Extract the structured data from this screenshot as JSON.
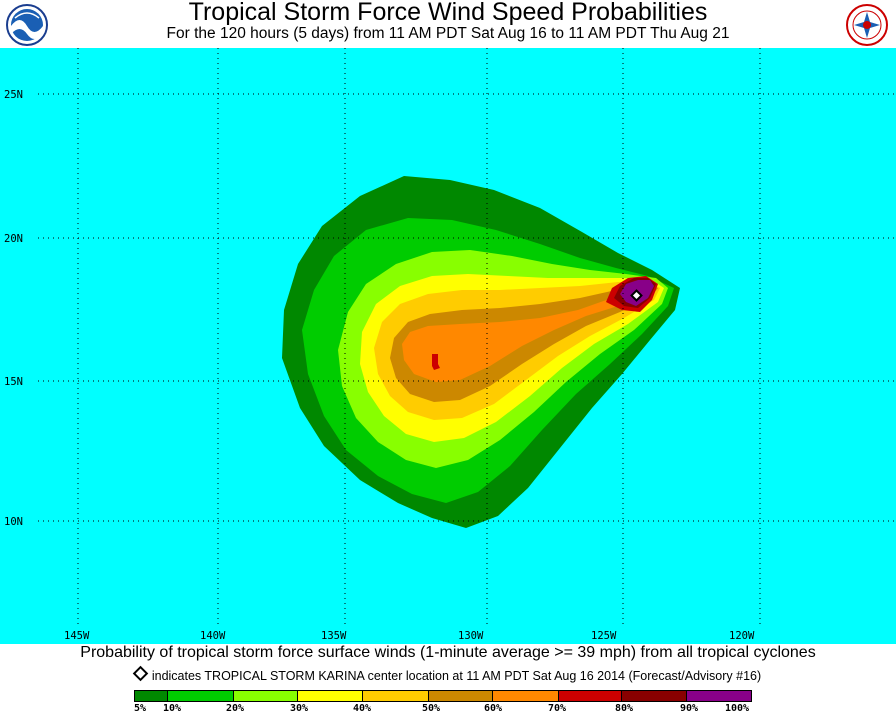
{
  "header": {
    "title": "Tropical Storm Force Wind Speed Probabilities",
    "subtitle": "For the 120 hours (5 days) from 11 AM PDT Sat Aug 16 to 11 AM PDT Thu Aug 21"
  },
  "logos": {
    "left": "noaa-logo",
    "right": "nws-logo"
  },
  "map": {
    "ocean_color": "#00ffff",
    "latitude_labels": [
      "25N",
      "20N",
      "15N",
      "10N"
    ],
    "longitude_labels": [
      "145W",
      "140W",
      "135W",
      "130W",
      "125W",
      "120W"
    ]
  },
  "footer": {
    "caption": "Probability of tropical storm force surface winds (1-minute average >= 39 mph) from all tropical cyclones",
    "center_note": "indicates TROPICAL STORM KARINA center location at 11 AM PDT Sat Aug 16 2014 (Forecast/Advisory #16)"
  },
  "legend": {
    "labels": [
      "5%",
      "10%",
      "20%",
      "30%",
      "40%",
      "50%",
      "60%",
      "70%",
      "80%",
      "90%",
      "100%"
    ],
    "colors": [
      "#008800",
      "#00cc00",
      "#88ff00",
      "#ffff00",
      "#ffcc00",
      "#cc8800",
      "#ff8800",
      "#cc0000",
      "#880000",
      "#880088"
    ]
  }
}
